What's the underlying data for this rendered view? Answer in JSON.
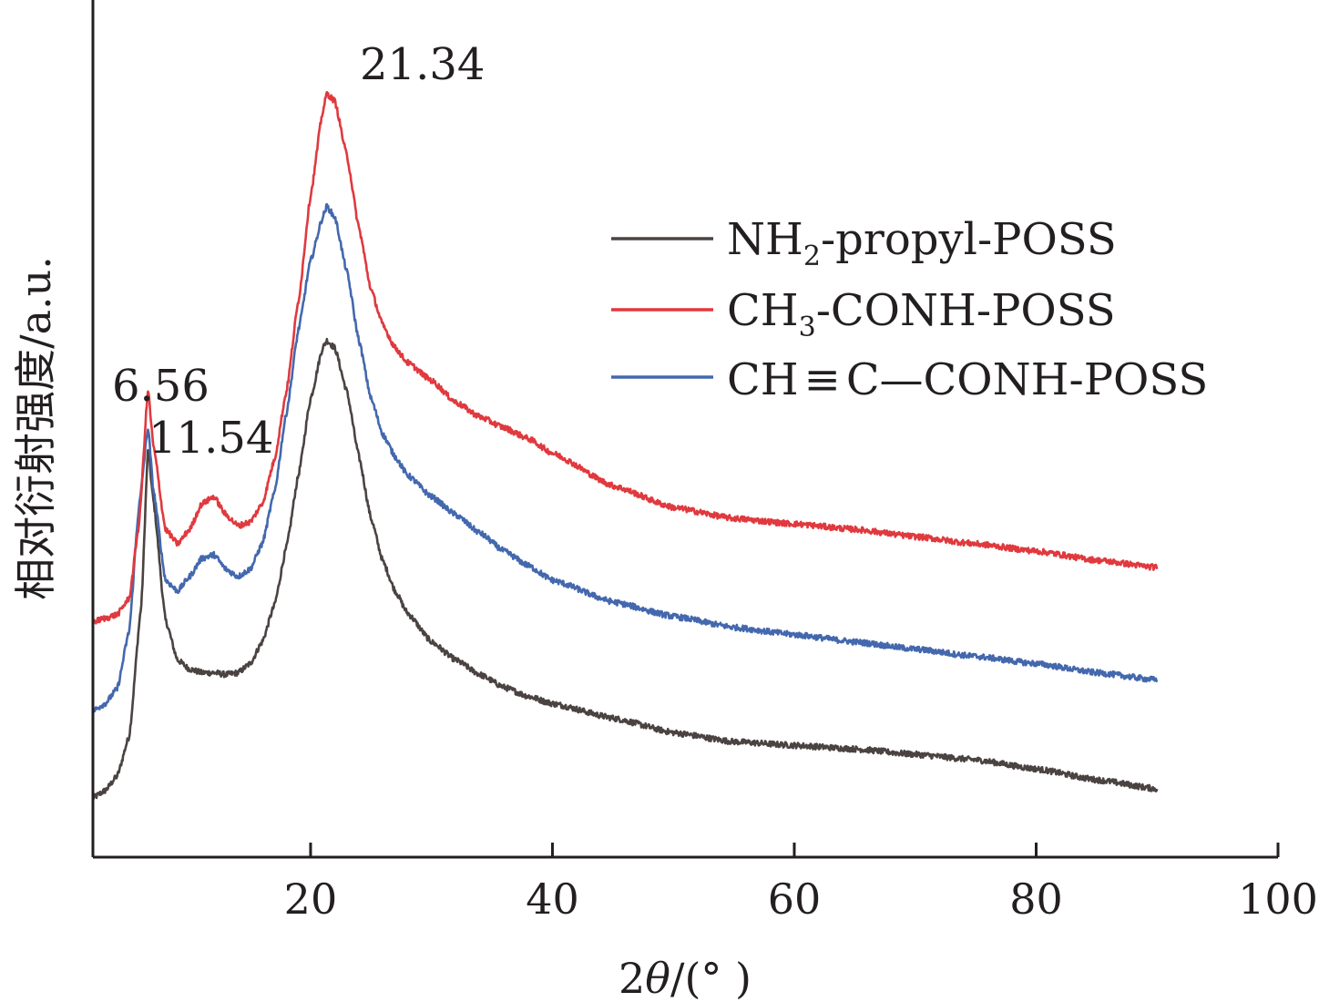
{
  "chart_data": {
    "type": "line",
    "title": "",
    "xlabel_prefix": "2",
    "xlabel_theta": "θ",
    "xlabel_suffix": "/(° )",
    "ylabel": "相对衍射强度/a.u.",
    "xlim": [
      2,
      100
    ],
    "x_ticks": [
      20,
      40,
      60,
      80,
      100
    ],
    "x_tick_labels": [
      "20",
      "40",
      "60",
      "80",
      "100"
    ],
    "y_ticks_shown": false,
    "grid": false,
    "legend_position": "upper-right",
    "peak_annotations": [
      "6.56",
      "11.54",
      "21.34"
    ],
    "series": [
      {
        "name_html": "NH<sub>2</sub>-propyl-POSS",
        "name_parts": [
          "NH",
          "2",
          "-propyl-POSS"
        ],
        "color": "#4a4341",
        "points": [
          [
            2,
            0.0
          ],
          [
            3,
            0.2
          ],
          [
            4,
            0.6
          ],
          [
            5,
            1.7
          ],
          [
            6,
            5.3
          ],
          [
            6.56,
            9.6
          ],
          [
            7,
            8.2
          ],
          [
            8,
            4.9
          ],
          [
            9,
            3.8
          ],
          [
            10,
            3.55
          ],
          [
            11,
            3.45
          ],
          [
            12,
            3.45
          ],
          [
            13,
            3.4
          ],
          [
            14,
            3.45
          ],
          [
            15,
            3.7
          ],
          [
            16,
            4.3
          ],
          [
            17,
            5.3
          ],
          [
            18,
            6.9
          ],
          [
            19,
            8.9
          ],
          [
            20,
            11.0
          ],
          [
            21,
            12.4
          ],
          [
            21.34,
            12.6
          ],
          [
            22,
            12.4
          ],
          [
            23,
            11.2
          ],
          [
            24,
            9.4
          ],
          [
            25,
            7.7
          ],
          [
            26,
            6.5
          ],
          [
            27,
            5.7
          ],
          [
            28,
            5.1
          ],
          [
            30,
            4.3
          ],
          [
            32,
            3.8
          ],
          [
            34,
            3.4
          ],
          [
            36,
            3.05
          ],
          [
            38,
            2.8
          ],
          [
            40,
            2.6
          ],
          [
            45,
            2.2
          ],
          [
            50,
            1.8
          ],
          [
            55,
            1.55
          ],
          [
            60,
            1.45
          ],
          [
            65,
            1.35
          ],
          [
            70,
            1.2
          ],
          [
            75,
            1.05
          ],
          [
            80,
            0.8
          ],
          [
            85,
            0.5
          ],
          [
            90,
            0.25
          ]
        ]
      },
      {
        "name_parts": [
          "CH",
          "3",
          "-CONH-POSS"
        ],
        "color": "#e0393e",
        "points": [
          [
            2,
            4.85
          ],
          [
            3,
            4.95
          ],
          [
            4,
            5.05
          ],
          [
            5,
            5.5
          ],
          [
            5.8,
            7.5
          ],
          [
            6.56,
            11.25
          ],
          [
            7,
            9.7
          ],
          [
            8,
            7.4
          ],
          [
            9,
            7.0
          ],
          [
            10,
            7.4
          ],
          [
            11,
            8.1
          ],
          [
            12,
            8.3
          ],
          [
            13,
            7.8
          ],
          [
            14,
            7.5
          ],
          [
            15,
            7.6
          ],
          [
            16,
            8.1
          ],
          [
            17,
            9.3
          ],
          [
            18,
            11.2
          ],
          [
            19,
            13.7
          ],
          [
            20,
            16.6
          ],
          [
            21,
            18.9
          ],
          [
            21.34,
            19.4
          ],
          [
            22,
            19.2
          ],
          [
            23,
            17.7
          ],
          [
            24,
            15.7
          ],
          [
            25,
            14.0
          ],
          [
            26,
            13.0
          ],
          [
            27,
            12.4
          ],
          [
            28,
            12.0
          ],
          [
            30,
            11.5
          ],
          [
            32,
            10.9
          ],
          [
            34,
            10.5
          ],
          [
            36,
            10.2
          ],
          [
            38,
            9.9
          ],
          [
            40,
            9.5
          ],
          [
            45,
            8.6
          ],
          [
            50,
            8.0
          ],
          [
            55,
            7.7
          ],
          [
            60,
            7.55
          ],
          [
            65,
            7.4
          ],
          [
            70,
            7.2
          ],
          [
            75,
            7.0
          ],
          [
            80,
            6.8
          ],
          [
            85,
            6.55
          ],
          [
            90,
            6.35
          ]
        ]
      },
      {
        "name_parts": [
          "CH",
          "≡",
          "C—CONH-POSS"
        ],
        "color": "#4468ae",
        "points": [
          [
            2,
            2.4
          ],
          [
            3,
            2.6
          ],
          [
            4,
            3.0
          ],
          [
            5,
            4.6
          ],
          [
            5.8,
            8.0
          ],
          [
            6.56,
            10.2
          ],
          [
            7,
            8.5
          ],
          [
            8,
            6.0
          ],
          [
            9,
            5.7
          ],
          [
            10,
            6.1
          ],
          [
            11,
            6.6
          ],
          [
            12,
            6.7
          ],
          [
            13,
            6.3
          ],
          [
            14,
            6.1
          ],
          [
            15,
            6.3
          ],
          [
            16,
            7.0
          ],
          [
            17,
            8.4
          ],
          [
            18,
            10.6
          ],
          [
            19,
            12.9
          ],
          [
            20,
            14.8
          ],
          [
            21,
            16.0
          ],
          [
            21.34,
            16.3
          ],
          [
            22,
            16.0
          ],
          [
            23,
            14.5
          ],
          [
            24,
            12.6
          ],
          [
            25,
            11.0
          ],
          [
            26,
            10.0
          ],
          [
            27,
            9.4
          ],
          [
            28,
            8.9
          ],
          [
            30,
            8.3
          ],
          [
            32,
            7.8
          ],
          [
            34,
            7.3
          ],
          [
            36,
            6.8
          ],
          [
            38,
            6.4
          ],
          [
            40,
            6.0
          ],
          [
            45,
            5.4
          ],
          [
            50,
            5.0
          ],
          [
            55,
            4.7
          ],
          [
            60,
            4.5
          ],
          [
            65,
            4.3
          ],
          [
            70,
            4.1
          ],
          [
            75,
            3.9
          ],
          [
            80,
            3.7
          ],
          [
            85,
            3.45
          ],
          [
            90,
            3.25
          ]
        ]
      }
    ]
  }
}
